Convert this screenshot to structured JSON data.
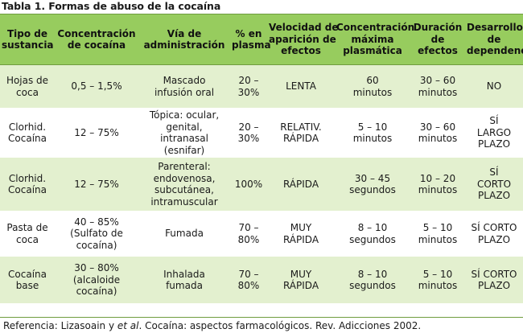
{
  "caption": "Tabla 1. Formas de abuso de la cocaína",
  "headers": [
    [
      "Tipo de",
      "sustancia"
    ],
    [
      "Concentración",
      "de cocaína"
    ],
    [
      "Vía de",
      "administración"
    ],
    [
      "% en",
      "plasma"
    ],
    [
      "Velocidad de",
      "aparición de",
      "efectos"
    ],
    [
      "Concentración",
      "máxima",
      "plasmática"
    ],
    [
      "Duración",
      "de",
      "efectos"
    ],
    [
      "Desarrollo",
      "de",
      "dependencia"
    ]
  ],
  "rows": [
    [
      [
        "Hojas de",
        "coca"
      ],
      [
        "0,5 – 1,5%"
      ],
      [
        "Mascado",
        "infusión oral"
      ],
      [
        "20 –",
        "30%"
      ],
      [
        "LENTA"
      ],
      [
        "60",
        "minutos"
      ],
      [
        "30 – 60",
        "minutos"
      ],
      [
        "NO"
      ]
    ],
    [
      [
        "Clorhid.",
        "Cocaína"
      ],
      [
        "12 – 75%"
      ],
      [
        "Tópica: ocular,",
        "genital,",
        "intranasal",
        "(esnifar)"
      ],
      [
        "20 –",
        "30%"
      ],
      [
        "RELATIV.",
        "RÁPIDA"
      ],
      [
        "5 – 10",
        "minutos"
      ],
      [
        "30 – 60",
        "minutos"
      ],
      [
        "SÍ",
        "LARGO",
        "PLAZO"
      ]
    ],
    [
      [
        "Clorhid.",
        "Cocaína"
      ],
      [
        "12 – 75%"
      ],
      [
        "Parenteral:",
        "endovenosa,",
        "subcutánea,",
        "intramuscular"
      ],
      [
        "100%"
      ],
      [
        "RÁPIDA"
      ],
      [
        "30 – 45",
        "segundos"
      ],
      [
        "10 – 20",
        "minutos"
      ],
      [
        "SÍ",
        "CORTO",
        "PLAZO"
      ]
    ],
    [
      [
        "Pasta de",
        "coca"
      ],
      [
        "40 – 85%",
        "(Sulfato de",
        "cocaína)"
      ],
      [
        "Fumada"
      ],
      [
        "70 –",
        "80%"
      ],
      [
        "MUY",
        "RÁPIDA"
      ],
      [
        "8 – 10",
        "segundos"
      ],
      [
        "5 – 10",
        "minutos"
      ],
      [
        "SÍ CORTO",
        "PLAZO"
      ]
    ],
    [
      [
        "Cocaína",
        "base"
      ],
      [
        "30 – 80%",
        "(alcaloide",
        "cocaína)"
      ],
      [
        "Inhalada",
        "fumada"
      ],
      [
        "70 –",
        "80%"
      ],
      [
        "MUY",
        "RÁPIDA"
      ],
      [
        "8 – 10",
        "segundos"
      ],
      [
        "5 – 10",
        "minutos"
      ],
      [
        "SÍ CORTO",
        "PLAZO"
      ]
    ]
  ],
  "reference": {
    "prefix": "Referencia: Lizasoain y ",
    "etal": "et al",
    "suffix": ". Cocaína: aspectos farmacológicos. Rev. Adicciones 2002."
  },
  "colors": {
    "header_bg": "#97cc5e",
    "stripe_bg": "#e3f0cf",
    "rule": "#6f9d3f"
  }
}
